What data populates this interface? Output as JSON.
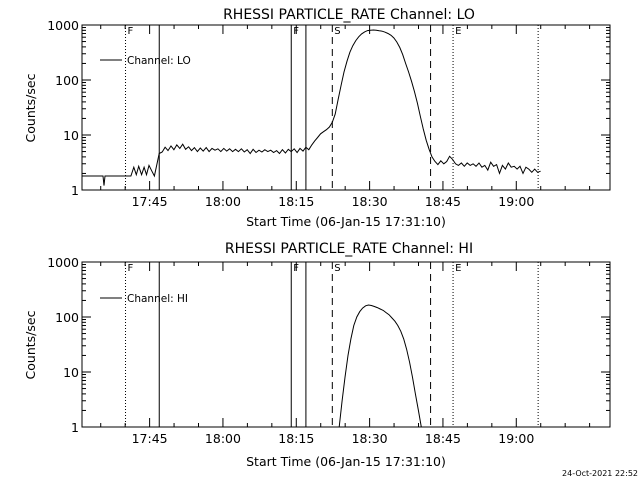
{
  "timestamp": "24-Oct-2021 22:52",
  "chart_data": [
    {
      "type": "line",
      "title": "RHESSI PARTICLE_RATE Channel: LO",
      "xlabel": "Start Time (06-Jan-15 17:31:10)",
      "ylabel": "Counts/sec",
      "yscale": "log",
      "ylim": [
        1,
        1000
      ],
      "xlim_minutes_after_start": [
        0,
        108
      ],
      "x_ticks": [
        {
          "t": 13.83,
          "label": "17:45"
        },
        {
          "t": 28.83,
          "label": "18:00"
        },
        {
          "t": 43.83,
          "label": "18:15"
        },
        {
          "t": 58.83,
          "label": "18:30"
        },
        {
          "t": 73.83,
          "label": "18:45"
        },
        {
          "t": 88.83,
          "label": "19:00"
        }
      ],
      "y_ticks": [
        {
          "v": 1,
          "label": "1"
        },
        {
          "v": 10,
          "label": "10"
        },
        {
          "v": 100,
          "label": "100"
        },
        {
          "v": 1000,
          "label": "1000"
        }
      ],
      "legend": "Channel: LO",
      "markers": [
        {
          "t": 8.9,
          "style": "dotted",
          "label": "F"
        },
        {
          "t": 15.8,
          "style": "solid",
          "label": ""
        },
        {
          "t": 42.8,
          "style": "solid",
          "label": "F"
        },
        {
          "t": 45.8,
          "style": "solid",
          "label": ""
        },
        {
          "t": 51.2,
          "style": "dashed",
          "label": "S"
        },
        {
          "t": 71.3,
          "style": "dashed",
          "label": ""
        },
        {
          "t": 75.9,
          "style": "dotted",
          "label": "E"
        },
        {
          "t": 93.3,
          "style": "dotted",
          "label": ""
        }
      ],
      "series": [
        {
          "name": "Channel: LO",
          "points": [
            [
              0,
              1.8
            ],
            [
              4,
              1.8
            ],
            [
              4.3,
              1.8
            ],
            [
              4.5,
              1.2
            ],
            [
              4.7,
              1.8
            ],
            [
              10,
              1.8
            ],
            [
              10.6,
              2.6
            ],
            [
              11.1,
              1.9
            ],
            [
              11.6,
              2.7
            ],
            [
              12.2,
              1.9
            ],
            [
              12.7,
              2.6
            ],
            [
              13.2,
              1.9
            ],
            [
              13.7,
              2.8
            ],
            [
              14.3,
              2.2
            ],
            [
              14.8,
              1.8
            ],
            [
              15.8,
              4.6
            ],
            [
              16.4,
              4.9
            ],
            [
              17,
              6.0
            ],
            [
              17.6,
              5.2
            ],
            [
              18.2,
              6.3
            ],
            [
              18.8,
              5.4
            ],
            [
              19.4,
              6.6
            ],
            [
              20,
              5.7
            ],
            [
              20.6,
              6.8
            ],
            [
              21.2,
              5.5
            ],
            [
              21.8,
              6.1
            ],
            [
              22.4,
              5.2
            ],
            [
              23,
              5.9
            ],
            [
              23.6,
              5.0
            ],
            [
              24.2,
              5.8
            ],
            [
              24.8,
              5.1
            ],
            [
              25.4,
              5.9
            ],
            [
              26,
              5.0
            ],
            [
              26.6,
              5.7
            ],
            [
              27.2,
              5.3
            ],
            [
              27.8,
              5.6
            ],
            [
              28.4,
              5.0
            ],
            [
              29,
              5.7
            ],
            [
              29.6,
              5.1
            ],
            [
              30.2,
              5.6
            ],
            [
              30.8,
              5.0
            ],
            [
              31.4,
              5.5
            ],
            [
              32,
              5.0
            ],
            [
              32.6,
              5.6
            ],
            [
              33.2,
              4.9
            ],
            [
              33.8,
              5.4
            ],
            [
              34.4,
              4.6
            ],
            [
              35,
              5.5
            ],
            [
              35.6,
              4.8
            ],
            [
              36.2,
              5.3
            ],
            [
              36.8,
              4.9
            ],
            [
              37.4,
              5.4
            ],
            [
              38,
              5.0
            ],
            [
              38.6,
              5.3
            ],
            [
              39.2,
              4.8
            ],
            [
              39.8,
              5.2
            ],
            [
              40.4,
              4.6
            ],
            [
              41,
              5.4
            ],
            [
              41.6,
              4.7
            ],
            [
              42.2,
              5.5
            ],
            [
              42.8,
              5.0
            ],
            [
              43.4,
              5.6
            ],
            [
              44,
              4.8
            ],
            [
              44.6,
              5.7
            ],
            [
              45.2,
              5.1
            ],
            [
              45.8,
              6.0
            ],
            [
              46.4,
              5.4
            ],
            [
              47,
              6.6
            ],
            [
              47.6,
              7.8
            ],
            [
              48.2,
              9.0
            ],
            [
              48.8,
              10.5
            ],
            [
              49.4,
              11.5
            ],
            [
              50,
              12.5
            ],
            [
              50.6,
              14
            ],
            [
              51.2,
              17
            ],
            [
              51.8,
              24
            ],
            [
              52.4,
              45
            ],
            [
              53,
              80
            ],
            [
              53.6,
              140
            ],
            [
              54.2,
              220
            ],
            [
              54.8,
              320
            ],
            [
              55.4,
              420
            ],
            [
              56,
              520
            ],
            [
              56.6,
              610
            ],
            [
              57.2,
              690
            ],
            [
              57.8,
              750
            ],
            [
              58.4,
              790
            ],
            [
              59,
              800
            ],
            [
              59.6,
              810
            ],
            [
              60.2,
              800
            ],
            [
              60.8,
              785
            ],
            [
              61.4,
              770
            ],
            [
              62,
              740
            ],
            [
              62.6,
              700
            ],
            [
              63.2,
              650
            ],
            [
              63.8,
              580
            ],
            [
              64.4,
              490
            ],
            [
              65,
              390
            ],
            [
              65.6,
              290
            ],
            [
              66.2,
              200
            ],
            [
              66.8,
              140
            ],
            [
              67.4,
              95
            ],
            [
              68,
              62
            ],
            [
              68.6,
              38
            ],
            [
              69.2,
              22
            ],
            [
              69.8,
              13
            ],
            [
              70.4,
              8
            ],
            [
              71,
              5.5
            ],
            [
              71.6,
              4.0
            ],
            [
              72.2,
              3.3
            ],
            [
              72.8,
              2.9
            ],
            [
              73.4,
              3.4
            ],
            [
              74,
              3.0
            ],
            [
              74.6,
              3.3
            ],
            [
              75.2,
              4.1
            ],
            [
              75.8,
              3.6
            ],
            [
              76.4,
              3.0
            ],
            [
              77,
              2.8
            ],
            [
              77.6,
              3.1
            ],
            [
              78.2,
              2.7
            ],
            [
              78.8,
              3.1
            ],
            [
              79.4,
              2.8
            ],
            [
              80,
              3.0
            ],
            [
              80.6,
              2.7
            ],
            [
              81.2,
              3.1
            ],
            [
              81.8,
              2.6
            ],
            [
              82.4,
              2.8
            ],
            [
              83,
              2.3
            ],
            [
              83.6,
              3.2
            ],
            [
              84.2,
              2.7
            ],
            [
              84.8,
              2.9
            ],
            [
              85.4,
              2.0
            ],
            [
              86,
              2.8
            ],
            [
              86.6,
              2.4
            ],
            [
              87.2,
              3.1
            ],
            [
              87.8,
              2.6
            ],
            [
              88.4,
              2.7
            ],
            [
              89,
              2.4
            ],
            [
              89.6,
              2.7
            ],
            [
              90.2,
              2.0
            ],
            [
              90.8,
              2.6
            ],
            [
              91.4,
              2.4
            ],
            [
              92,
              2.1
            ],
            [
              92.6,
              2.4
            ],
            [
              93.2,
              2.1
            ],
            [
              93.8,
              2.2
            ]
          ]
        }
      ]
    },
    {
      "type": "line",
      "title": "RHESSI PARTICLE_RATE Channel: HI",
      "xlabel": "Start Time (06-Jan-15 17:31:10)",
      "ylabel": "Counts/sec",
      "yscale": "log",
      "ylim": [
        1,
        1000
      ],
      "xlim_minutes_after_start": [
        0,
        108
      ],
      "x_ticks": [
        {
          "t": 13.83,
          "label": "17:45"
        },
        {
          "t": 28.83,
          "label": "18:00"
        },
        {
          "t": 43.83,
          "label": "18:15"
        },
        {
          "t": 58.83,
          "label": "18:30"
        },
        {
          "t": 73.83,
          "label": "18:45"
        },
        {
          "t": 88.83,
          "label": "19:00"
        }
      ],
      "y_ticks": [
        {
          "v": 1,
          "label": "1"
        },
        {
          "v": 10,
          "label": "10"
        },
        {
          "v": 100,
          "label": "100"
        },
        {
          "v": 1000,
          "label": "1000"
        }
      ],
      "legend": "Channel: HI",
      "markers": [
        {
          "t": 8.9,
          "style": "dotted",
          "label": "F"
        },
        {
          "t": 15.8,
          "style": "solid",
          "label": ""
        },
        {
          "t": 42.8,
          "style": "solid",
          "label": "F"
        },
        {
          "t": 45.8,
          "style": "solid",
          "label": ""
        },
        {
          "t": 51.2,
          "style": "dashed",
          "label": "S"
        },
        {
          "t": 71.3,
          "style": "dashed",
          "label": ""
        },
        {
          "t": 75.9,
          "style": "dotted",
          "label": "E"
        },
        {
          "t": 93.3,
          "style": "dotted",
          "label": ""
        }
      ],
      "series": [
        {
          "name": "Channel: HI",
          "points": [
            [
              52.6,
              1.0
            ],
            [
              53.2,
              3
            ],
            [
              53.8,
              8
            ],
            [
              54.4,
              20
            ],
            [
              55,
              40
            ],
            [
              55.6,
              70
            ],
            [
              56.2,
              100
            ],
            [
              56.8,
              125
            ],
            [
              57.4,
              145
            ],
            [
              58,
              160
            ],
            [
              58.6,
              165
            ],
            [
              59.2,
              162
            ],
            [
              59.8,
              155
            ],
            [
              60.4,
              148
            ],
            [
              61,
              140
            ],
            [
              61.6,
              132
            ],
            [
              62.2,
              120
            ],
            [
              62.8,
              110
            ],
            [
              63.4,
              96
            ],
            [
              64,
              84
            ],
            [
              64.6,
              70
            ],
            [
              65.2,
              55
            ],
            [
              65.8,
              40
            ],
            [
              66.4,
              26
            ],
            [
              67,
              15
            ],
            [
              67.6,
              8
            ],
            [
              68.2,
              4
            ],
            [
              68.8,
              2
            ],
            [
              69.4,
              1.0
            ]
          ]
        }
      ]
    }
  ]
}
